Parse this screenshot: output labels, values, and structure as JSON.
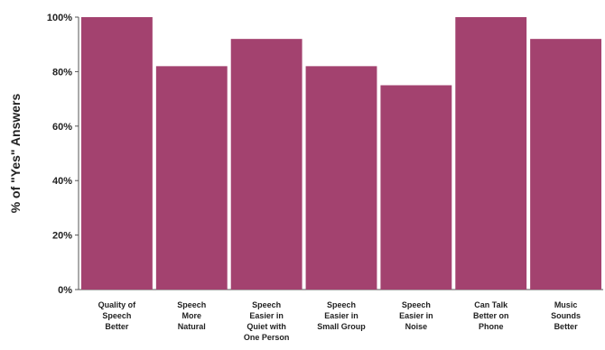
{
  "chart_data": {
    "type": "bar",
    "categories": [
      [
        "Quality of",
        "Speech",
        "Better"
      ],
      [
        "Speech",
        "More",
        "Natural"
      ],
      [
        "Speech",
        "Easier in",
        "Quiet with",
        "One Person"
      ],
      [
        "Speech",
        "Easier in",
        "Small Group"
      ],
      [
        "Speech",
        "Easier in",
        "Noise"
      ],
      [
        "Can Talk",
        "Better on",
        "Phone"
      ],
      [
        "Music",
        "Sounds",
        "Better"
      ]
    ],
    "values": [
      100,
      82,
      92,
      82,
      75,
      100,
      92
    ],
    "ylabel": "% of \"Yes\" Answers",
    "ylim": [
      0,
      100
    ],
    "yticks": [
      0,
      20,
      40,
      60,
      80,
      100
    ],
    "ytick_labels": [
      "0%",
      "20%",
      "40%",
      "60%",
      "80%",
      "100%"
    ],
    "bar_color": "#a3426f",
    "grid": false
  }
}
